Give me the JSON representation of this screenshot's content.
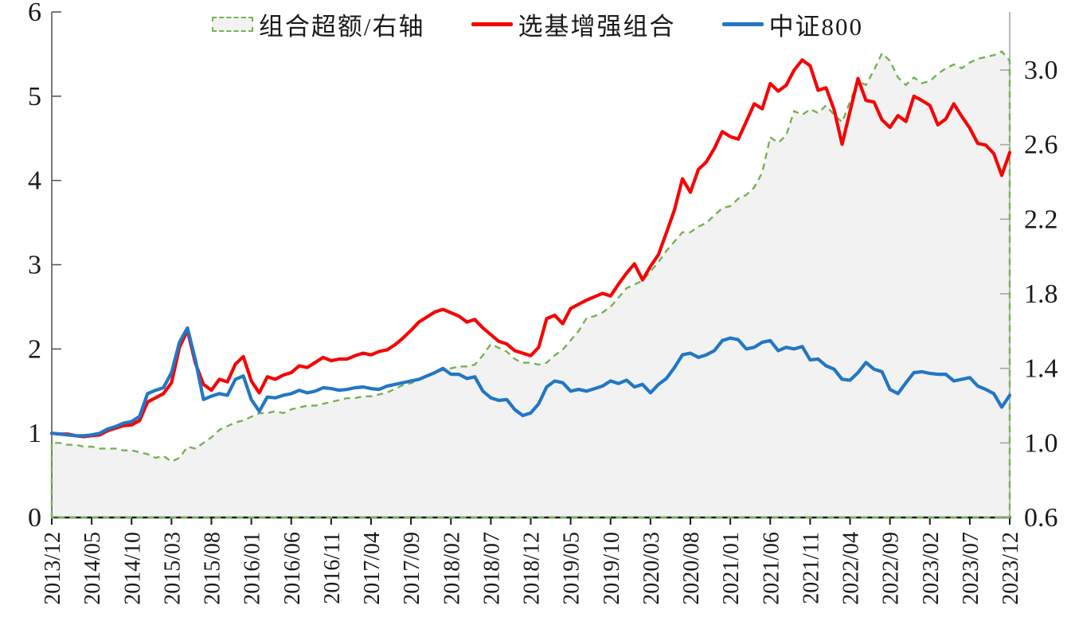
{
  "figure": {
    "background": "#ffffff"
  },
  "colors": {
    "excess_green": "#76b254",
    "enhanced_red": "#f40606",
    "index_blue": "#2277c4",
    "area_fill": "#f2f2f2",
    "axis_text": "#1a1a1a",
    "left_spine": "#595959",
    "right_spine": "#a6a6a6",
    "bottom_axis": "#1a1a1a"
  },
  "chart_data": {
    "type": "line",
    "title": "",
    "x_start": "2013/12",
    "x_end": "2023/12",
    "x_frequency": "monthly",
    "n_points": 121,
    "x_tick_labels": [
      "2013/12",
      "2014/05",
      "2014/10",
      "2015/03",
      "2015/08",
      "2016/01",
      "2016/06",
      "2016/11",
      "2017/04",
      "2017/09",
      "2018/02",
      "2018/07",
      "2018/12",
      "2019/05",
      "2019/10",
      "2020/03",
      "2020/08",
      "2021/01",
      "2021/06",
      "2021/11",
      "2022/04",
      "2022/09",
      "2023/02",
      "2023/07",
      "2023/12"
    ],
    "x_tick_month_index": [
      0,
      5,
      10,
      15,
      20,
      25,
      30,
      35,
      40,
      45,
      50,
      55,
      60,
      65,
      70,
      75,
      80,
      85,
      90,
      95,
      100,
      105,
      110,
      115,
      120
    ],
    "left_axis": {
      "tick_labels": [
        "0",
        "1",
        "2",
        "3",
        "4",
        "5",
        "6"
      ],
      "range": [
        0,
        6
      ]
    },
    "right_axis": {
      "tick_labels": [
        "0.6",
        "1.0",
        "1.4",
        "1.8",
        "2.2",
        "2.6",
        "3.0"
      ],
      "tick_values": [
        0.6,
        1.0,
        1.4,
        1.8,
        2.2,
        2.6,
        3.0
      ],
      "range_top_of_plot": 3.31
    },
    "grid": "off",
    "legend_position": "top-center",
    "series": [
      {
        "name": "组合超额/右轴",
        "axis": "right",
        "style": "dashed-area",
        "color": "#76b254",
        "fill": "#f2f2f2",
        "values": [
          1.0,
          1.0,
          0.99,
          0.99,
          0.98,
          0.98,
          0.97,
          0.97,
          0.97,
          0.96,
          0.96,
          0.95,
          0.94,
          0.92,
          0.93,
          0.9,
          0.92,
          0.98,
          0.97,
          1.0,
          1.03,
          1.07,
          1.09,
          1.11,
          1.12,
          1.14,
          1.16,
          1.16,
          1.17,
          1.16,
          1.18,
          1.19,
          1.2,
          1.2,
          1.21,
          1.22,
          1.23,
          1.24,
          1.24,
          1.25,
          1.25,
          1.26,
          1.27,
          1.29,
          1.31,
          1.32,
          1.34,
          1.36,
          1.38,
          1.39,
          1.4,
          1.41,
          1.41,
          1.42,
          1.47,
          1.53,
          1.51,
          1.49,
          1.45,
          1.43,
          1.43,
          1.42,
          1.43,
          1.47,
          1.5,
          1.55,
          1.6,
          1.67,
          1.68,
          1.7,
          1.73,
          1.78,
          1.83,
          1.85,
          1.87,
          1.92,
          1.97,
          2.03,
          2.08,
          2.13,
          2.13,
          2.16,
          2.18,
          2.22,
          2.26,
          2.27,
          2.31,
          2.33,
          2.37,
          2.45,
          2.64,
          2.61,
          2.65,
          2.78,
          2.76,
          2.79,
          2.77,
          2.81,
          2.76,
          2.72,
          2.83,
          2.94,
          2.92,
          3.0,
          3.09,
          3.05,
          2.96,
          2.92,
          2.96,
          2.93,
          2.94,
          2.98,
          3.01,
          3.03,
          3.01,
          3.04,
          3.06,
          3.07,
          3.08,
          3.1,
          3.05
        ]
      },
      {
        "name": "选基增强组合",
        "axis": "left",
        "style": "solid",
        "color": "#f40606",
        "values": [
          1.0,
          0.99,
          0.99,
          0.97,
          0.96,
          0.97,
          0.98,
          1.03,
          1.06,
          1.09,
          1.1,
          1.15,
          1.37,
          1.42,
          1.47,
          1.6,
          2.02,
          2.22,
          1.83,
          1.58,
          1.51,
          1.64,
          1.61,
          1.82,
          1.91,
          1.62,
          1.48,
          1.67,
          1.64,
          1.69,
          1.72,
          1.8,
          1.78,
          1.84,
          1.9,
          1.86,
          1.88,
          1.88,
          1.92,
          1.95,
          1.93,
          1.97,
          1.99,
          2.05,
          2.13,
          2.22,
          2.32,
          2.38,
          2.44,
          2.47,
          2.43,
          2.39,
          2.32,
          2.35,
          2.25,
          2.17,
          2.09,
          2.06,
          1.98,
          1.95,
          1.92,
          2.02,
          2.36,
          2.4,
          2.3,
          2.48,
          2.53,
          2.58,
          2.62,
          2.66,
          2.63,
          2.77,
          2.9,
          3.01,
          2.82,
          2.98,
          3.12,
          3.38,
          3.65,
          4.02,
          3.86,
          4.13,
          4.22,
          4.38,
          4.58,
          4.52,
          4.49,
          4.7,
          4.91,
          4.85,
          5.15,
          5.06,
          5.13,
          5.31,
          5.43,
          5.36,
          5.07,
          5.1,
          4.84,
          4.43,
          4.82,
          5.21,
          4.95,
          4.93,
          4.72,
          4.63,
          4.77,
          4.7,
          5.0,
          4.95,
          4.89,
          4.66,
          4.73,
          4.91,
          4.76,
          4.62,
          4.44,
          4.42,
          4.32,
          4.06,
          4.33
        ]
      },
      {
        "name": "中证800",
        "axis": "left",
        "style": "solid",
        "color": "#2277c4",
        "values": [
          1.0,
          0.99,
          0.98,
          0.97,
          0.97,
          0.98,
          1.0,
          1.05,
          1.08,
          1.12,
          1.14,
          1.2,
          1.47,
          1.51,
          1.54,
          1.72,
          2.08,
          2.25,
          1.87,
          1.4,
          1.44,
          1.47,
          1.45,
          1.64,
          1.68,
          1.4,
          1.26,
          1.43,
          1.42,
          1.45,
          1.47,
          1.51,
          1.48,
          1.5,
          1.54,
          1.53,
          1.51,
          1.52,
          1.54,
          1.55,
          1.53,
          1.52,
          1.56,
          1.58,
          1.6,
          1.62,
          1.64,
          1.68,
          1.72,
          1.77,
          1.7,
          1.7,
          1.65,
          1.67,
          1.5,
          1.42,
          1.39,
          1.4,
          1.28,
          1.21,
          1.24,
          1.35,
          1.55,
          1.62,
          1.6,
          1.5,
          1.52,
          1.5,
          1.53,
          1.56,
          1.62,
          1.59,
          1.63,
          1.55,
          1.58,
          1.48,
          1.58,
          1.65,
          1.78,
          1.93,
          1.95,
          1.9,
          1.93,
          1.98,
          2.1,
          2.13,
          2.11,
          2.0,
          2.02,
          2.08,
          2.1,
          1.98,
          2.02,
          2.0,
          2.03,
          1.87,
          1.88,
          1.8,
          1.76,
          1.64,
          1.63,
          1.72,
          1.84,
          1.76,
          1.73,
          1.52,
          1.47,
          1.6,
          1.72,
          1.73,
          1.71,
          1.7,
          1.7,
          1.62,
          1.64,
          1.66,
          1.56,
          1.52,
          1.47,
          1.31,
          1.45
        ]
      }
    ]
  }
}
